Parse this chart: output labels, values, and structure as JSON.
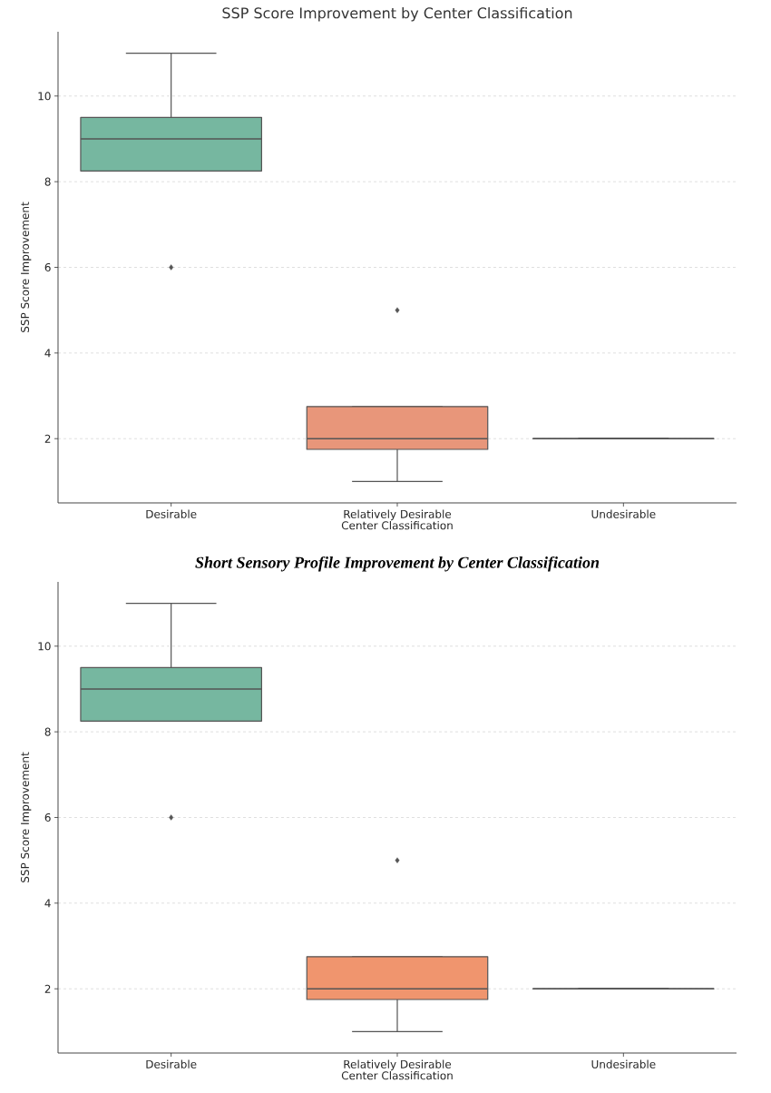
{
  "chart_data": [
    {
      "type": "box",
      "title": "SSP Score Improvement by Center Classification",
      "xlabel": "Center Classification",
      "ylabel": "SSP Score Improvement",
      "categories": [
        "Desirable",
        "Relatively Desirable",
        "Undesirable"
      ],
      "colors": [
        "#76b7a0",
        "#e8967a",
        "#555555"
      ],
      "boxes": [
        {
          "low": 8.25,
          "q1": 8.25,
          "median": 9,
          "q3": 9.5,
          "high": 11,
          "outliers": [
            6
          ]
        },
        {
          "low": 1,
          "q1": 1.75,
          "median": 2,
          "q3": 2.75,
          "high": 2.75,
          "outliers": [
            5
          ]
        },
        {
          "low": 2,
          "q1": 2,
          "median": 2,
          "q3": 2,
          "high": 2
        }
      ],
      "ylim": [
        0.5,
        11.5
      ],
      "yticks": [
        2,
        4,
        6,
        8,
        10
      ],
      "grid": "y"
    },
    {
      "type": "box",
      "title": "Short Sensory Profile Improvement by Center Classification",
      "xlabel": "Center Classification",
      "ylabel": "SSP Score Improvement",
      "categories": [
        "Desirable",
        "Relatively Desirable",
        "Undesirable"
      ],
      "colors": [
        "#76b7a0",
        "#f0956e",
        "#555555"
      ],
      "boxes": [
        {
          "low": 8.25,
          "q1": 8.25,
          "median": 9,
          "q3": 9.5,
          "high": 11,
          "outliers": [
            6
          ]
        },
        {
          "low": 1,
          "q1": 1.75,
          "median": 2,
          "q3": 2.75,
          "high": 2.75,
          "outliers": [
            5
          ]
        },
        {
          "low": 2,
          "q1": 2,
          "median": 2,
          "q3": 2,
          "high": 2
        }
      ],
      "ylim": [
        0.5,
        11.5
      ],
      "yticks": [
        2,
        4,
        6,
        8,
        10
      ],
      "grid": "y"
    }
  ]
}
